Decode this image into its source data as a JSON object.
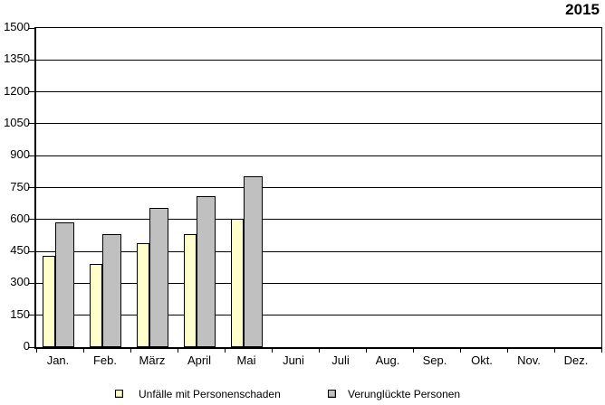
{
  "title": "2015",
  "chart_data": {
    "type": "bar",
    "title": "2015",
    "title_position": "top-right",
    "categories": [
      "Jan.",
      "Feb.",
      "März",
      "April",
      "Mai",
      "Juni",
      "Juli",
      "Aug.",
      "Sep.",
      "Okt.",
      "Nov.",
      "Dez."
    ],
    "series": [
      {
        "name": "Unfälle mit Personenschaden",
        "color": "#FFFFCC",
        "values": [
          430,
          390,
          490,
          530,
          605,
          null,
          null,
          null,
          null,
          null,
          null,
          null
        ]
      },
      {
        "name": "Verunglückte Personen",
        "color": "#C0C0C0",
        "values": [
          585,
          530,
          655,
          710,
          805,
          null,
          null,
          null,
          null,
          null,
          null,
          null
        ]
      }
    ],
    "xlabel": "",
    "ylabel": "",
    "ylim": [
      0,
      1500
    ],
    "yticks": [
      0,
      150,
      300,
      450,
      600,
      750,
      900,
      1050,
      1200,
      1350,
      1500
    ],
    "grid": "horizontal",
    "gridline_color": "#000000",
    "legend_position": "bottom"
  }
}
